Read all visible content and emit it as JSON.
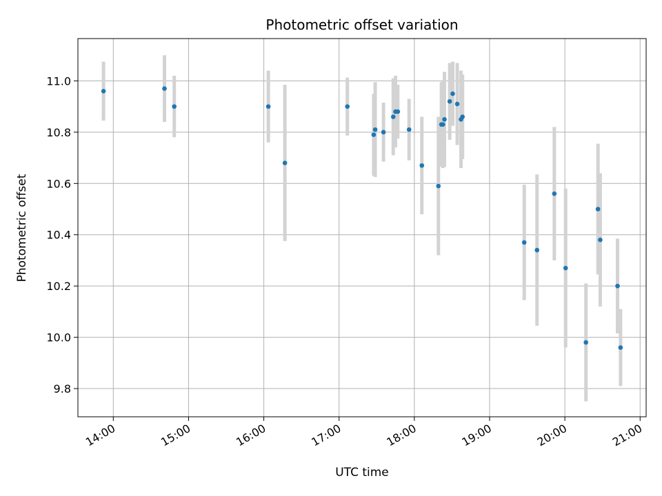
{
  "chart_data": {
    "type": "scatter",
    "title": "Photometric offset variation",
    "xlabel": "UTC time",
    "ylabel": "Photometric offset",
    "x_unit": "hours UTC",
    "xlim": [
      13.53,
      21.08
    ],
    "ylim": [
      9.69,
      11.165
    ],
    "x_ticks": [
      14,
      15,
      16,
      17,
      18,
      19,
      20,
      21
    ],
    "x_tick_labels": [
      "14:00",
      "15:00",
      "16:00",
      "17:00",
      "18:00",
      "19:00",
      "20:00",
      "21:00"
    ],
    "y_ticks": [
      9.8,
      10.0,
      10.2,
      10.4,
      10.6,
      10.8,
      11.0
    ],
    "y_tick_labels": [
      "9.8",
      "10.0",
      "10.2",
      "10.4",
      "10.6",
      "10.8",
      "11.0"
    ],
    "grid": true,
    "point_color": "#1f77b4",
    "errorbar_color": "#d3d3d3",
    "points": [
      {
        "x": 13.87,
        "y": 10.96,
        "err": 0.115
      },
      {
        "x": 14.68,
        "y": 10.97,
        "err": 0.13
      },
      {
        "x": 14.81,
        "y": 10.9,
        "err": 0.12
      },
      {
        "x": 16.06,
        "y": 10.9,
        "err": 0.14
      },
      {
        "x": 16.28,
        "y": 10.68,
        "err": 0.305
      },
      {
        "x": 17.11,
        "y": 10.9,
        "err": 0.113
      },
      {
        "x": 17.46,
        "y": 10.79,
        "err": 0.16
      },
      {
        "x": 17.48,
        "y": 10.81,
        "err": 0.185
      },
      {
        "x": 17.59,
        "y": 10.8,
        "err": 0.115
      },
      {
        "x": 17.72,
        "y": 10.86,
        "err": 0.15
      },
      {
        "x": 17.75,
        "y": 10.88,
        "err": 0.14
      },
      {
        "x": 17.78,
        "y": 10.88,
        "err": 0.105
      },
      {
        "x": 17.93,
        "y": 10.81,
        "err": 0.12
      },
      {
        "x": 18.1,
        "y": 10.67,
        "err": 0.19
      },
      {
        "x": 18.32,
        "y": 10.59,
        "err": 0.27
      },
      {
        "x": 18.36,
        "y": 10.83,
        "err": 0.165
      },
      {
        "x": 18.38,
        "y": 10.83,
        "err": 0.17
      },
      {
        "x": 18.4,
        "y": 10.85,
        "err": 0.185
      },
      {
        "x": 18.47,
        "y": 10.92,
        "err": 0.15
      },
      {
        "x": 18.51,
        "y": 10.95,
        "err": 0.125
      },
      {
        "x": 18.57,
        "y": 10.91,
        "err": 0.16
      },
      {
        "x": 18.62,
        "y": 10.85,
        "err": 0.19
      },
      {
        "x": 18.64,
        "y": 10.86,
        "err": 0.165
      },
      {
        "x": 19.46,
        "y": 10.37,
        "err": 0.225
      },
      {
        "x": 19.63,
        "y": 10.34,
        "err": 0.295
      },
      {
        "x": 19.86,
        "y": 10.56,
        "err": 0.26
      },
      {
        "x": 20.01,
        "y": 10.27,
        "err": 0.31
      },
      {
        "x": 20.28,
        "y": 9.98,
        "err": 0.23
      },
      {
        "x": 20.44,
        "y": 10.5,
        "err": 0.255
      },
      {
        "x": 20.47,
        "y": 10.38,
        "err": 0.26
      },
      {
        "x": 20.7,
        "y": 10.2,
        "err": 0.185
      },
      {
        "x": 20.74,
        "y": 9.96,
        "err": 0.15
      }
    ]
  }
}
